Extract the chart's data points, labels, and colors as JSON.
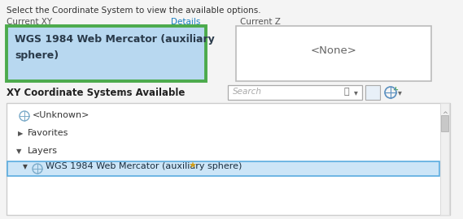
{
  "bg_color": "#f4f4f4",
  "top_text": "Select the Coordinate System to view the available options.",
  "label_current_xy": "Current XY",
  "label_details": "Details",
  "label_current_z": "Current Z",
  "xy_box_text_line1": "WGS 1984 Web Mercator (auxiliary",
  "xy_box_text_line2": "sphere)",
  "xy_box_bg": "#b8d8f0",
  "xy_box_border": "#4caa4c",
  "z_box_text": "<None>",
  "z_box_bg": "#ffffff",
  "z_box_border": "#bbbbbb",
  "section_label": "XY Coordinate Systems Available",
  "search_placeholder": "Search",
  "list_bg": "#ffffff",
  "list_border": "#cccccc",
  "unknown_item": "<Unknown>",
  "favorites_item": "Favorites",
  "layers_item": "Layers",
  "highlighted_item": "WGS 1984 Web Mercator (auxiliary sphere)",
  "highlighted_bg": "#cce5f7",
  "highlighted_border": "#5aacdf",
  "details_color": "#1a7fc1",
  "font_family": "DejaVu Sans"
}
